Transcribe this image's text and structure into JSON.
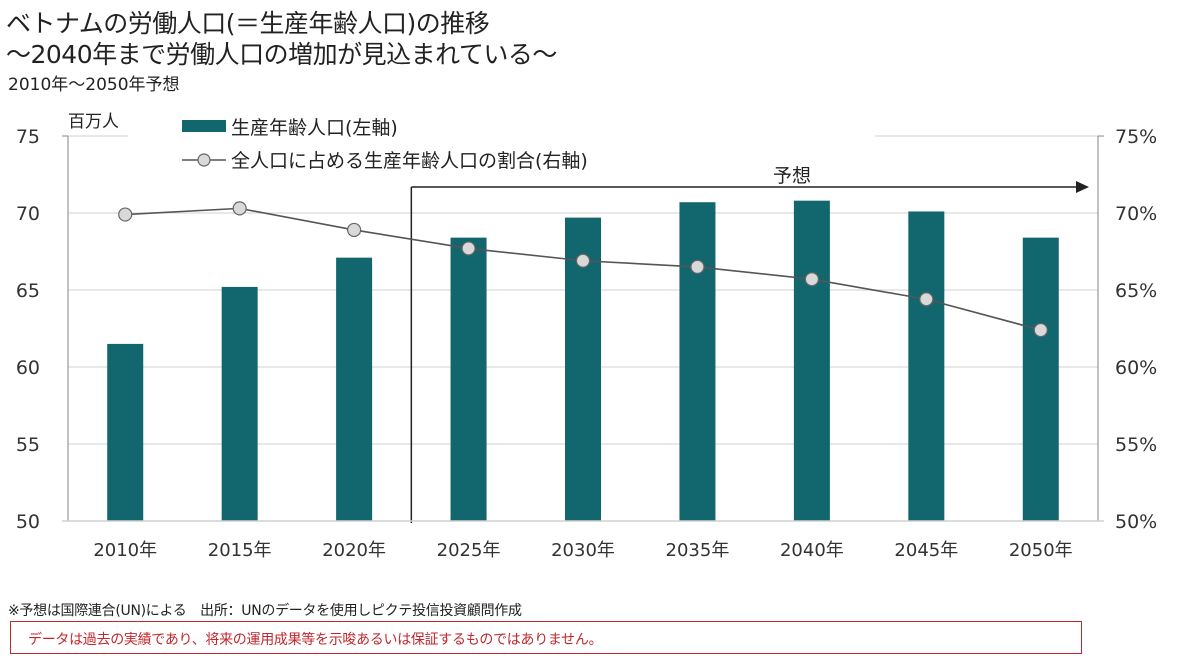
{
  "header": {
    "title_line1": "ベトナムの労働人口(＝生産年齢人口)の推移",
    "title_line2": "～2040年まで労働人口の増加が見込まれている～",
    "subtitle": "2010年～2050年予想"
  },
  "chart_data": {
    "type": "bar+line",
    "title": "ベトナムの労働人口(＝生産年齢人口)の推移",
    "categories": [
      "2010年",
      "2015年",
      "2020年",
      "2025年",
      "2030年",
      "2035年",
      "2040年",
      "2045年",
      "2050年"
    ],
    "left_axis": {
      "unit_label": "百万人",
      "ylim": [
        50,
        75
      ],
      "ticks": [
        "50",
        "55",
        "60",
        "65",
        "70",
        "75"
      ]
    },
    "right_axis": {
      "ylim": [
        50,
        75
      ],
      "ticks": [
        "50%",
        "55%",
        "60%",
        "65%",
        "70%",
        "75%"
      ]
    },
    "series": [
      {
        "name": "生産年齢人口(左軸)",
        "type": "bar",
        "axis": "left",
        "color": "#12666e",
        "values": [
          61.5,
          65.2,
          67.1,
          68.4,
          69.7,
          70.7,
          70.8,
          70.1,
          68.4
        ]
      },
      {
        "name": "全人口に占める生産年齢人口の割合(右軸)",
        "type": "line",
        "axis": "right",
        "color": "#555555",
        "marker_fill": "#d9d9d9",
        "values": [
          69.9,
          70.3,
          68.9,
          67.7,
          66.9,
          66.5,
          65.7,
          64.4,
          62.4
        ]
      }
    ],
    "annotation": {
      "label": "予想",
      "from_category_boundary": "2020年-2025年"
    },
    "grid": true,
    "legend_position": "top-left"
  },
  "footer": {
    "note": "※予想は国際連合(UN)による　出所：UNのデータを使用しピクテ投信投資顧問作成",
    "disclaimer": "データは過去の実績であり、将来の運用成果等を示唆あるいは保証するものではありません。",
    "disclaimer_color": "#c0282d"
  }
}
